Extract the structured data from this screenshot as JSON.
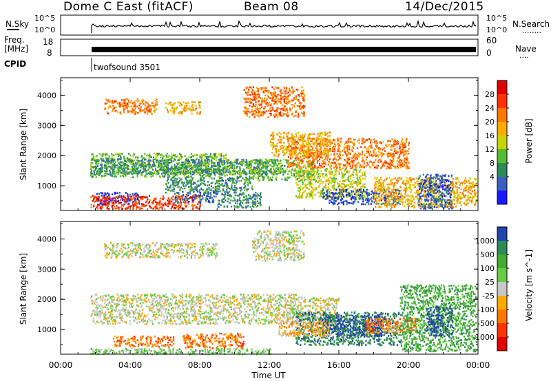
{
  "header": {
    "title": "Dome C East (fitACF)",
    "beam": "Beam 08",
    "date": "14/Dec/2015"
  },
  "noise_panel": {
    "left_label": "N.Sky",
    "right_label": "N.Search",
    "right_dots": "........",
    "tick_top": "10^5",
    "tick_bottom": "10^0"
  },
  "freq_panel": {
    "left_label_1": "Freq.",
    "left_label_2": "[MHz]",
    "tick_top": "18",
    "tick_bottom": "8",
    "right_label": "Nave",
    "right_dots": "....",
    "right_tick_top": "60",
    "right_tick_bottom": "0"
  },
  "cpid": {
    "label": "CPID",
    "program": "twofsound 3501"
  },
  "chart_data": [
    {
      "type": "heatmap",
      "name": "power",
      "ylabel": "Slant Range [km]",
      "ylim": [
        180,
        4580
      ],
      "xlim": [
        0,
        24
      ],
      "yticks": [
        1000,
        2000,
        3000,
        4000
      ],
      "colorbar_label": "Power [dB]",
      "colorbar_ticks": [
        "28",
        "24",
        "20",
        "16",
        "12",
        "8",
        "4"
      ],
      "colorbar_colors": [
        "#e00000",
        "#ff3300",
        "#ff7700",
        "#ffaa00",
        "#c8d400",
        "#55bb33",
        "#2e8b57",
        "#3b5fc0",
        "#1a1aff"
      ],
      "regions": [
        {
          "x0": 1.7,
          "x1": 9.5,
          "y0": 1300,
          "y1": 2100,
          "level": 5
        },
        {
          "x0": 1.7,
          "x1": 12.5,
          "y0": 1400,
          "y1": 1900,
          "level": 6
        },
        {
          "x0": 9.5,
          "x1": 14.5,
          "y0": 1200,
          "y1": 1900,
          "level": 5
        },
        {
          "x0": 6.0,
          "x1": 11.0,
          "y0": 800,
          "y1": 1300,
          "level": 6
        },
        {
          "x0": 2.0,
          "x1": 4.5,
          "y0": 400,
          "y1": 800,
          "level": 8
        },
        {
          "x0": 6.5,
          "x1": 9.0,
          "y0": 450,
          "y1": 800,
          "level": 7
        },
        {
          "x0": 9.0,
          "x1": 11.5,
          "y0": 300,
          "y1": 800,
          "level": 6
        },
        {
          "x0": 13.5,
          "x1": 17.5,
          "y0": 600,
          "y1": 1600,
          "level": 4
        },
        {
          "x0": 15.0,
          "x1": 19.5,
          "y0": 400,
          "y1": 900,
          "level": 7
        },
        {
          "x0": 18.0,
          "x1": 23.9,
          "y0": 300,
          "y1": 1300,
          "level": 3
        },
        {
          "x0": 20.5,
          "x1": 22.5,
          "y0": 250,
          "y1": 1400,
          "level": 7
        },
        {
          "x0": 13.0,
          "x1": 20.0,
          "y0": 1600,
          "y1": 2600,
          "level": 2
        },
        {
          "x0": 2.5,
          "x1": 5.5,
          "y0": 3400,
          "y1": 3900,
          "level": 2
        },
        {
          "x0": 6.0,
          "x1": 8.0,
          "y0": 3400,
          "y1": 3800,
          "level": 3
        },
        {
          "x0": 10.5,
          "x1": 14.0,
          "y0": 3300,
          "y1": 4300,
          "level": 2
        },
        {
          "x0": 12.0,
          "x1": 15.5,
          "y0": 2000,
          "y1": 2800,
          "level": 3
        },
        {
          "x0": 1.7,
          "x1": 8.0,
          "y0": 250,
          "y1": 700,
          "level": 1
        }
      ]
    },
    {
      "type": "heatmap",
      "name": "velocity",
      "xlabel": "Time UT",
      "ylabel": "Slant Range [km]",
      "ylim": [
        180,
        4580
      ],
      "xlim": [
        0,
        24
      ],
      "yticks": [
        1000,
        2000,
        3000,
        4000
      ],
      "xticks": [
        "00:00",
        "04:00",
        "08:00",
        "12:00",
        "16:00",
        "20:00",
        "00:00"
      ],
      "colorbar_label": "Velocity [m s^-1]",
      "colorbar_ticks": [
        "1000",
        "500",
        "100",
        "25",
        "-25",
        "-100",
        "-500",
        "-1000"
      ],
      "colorbar_colors": [
        "#2244aa",
        "#2e8b57",
        "#44aa33",
        "#66cc44",
        "#c8c8c8",
        "#ffaa00",
        "#ff7700",
        "#ff3300",
        "#e00000"
      ],
      "regions": [
        {
          "x0": 1.7,
          "x1": 13.5,
          "y0": 1200,
          "y1": 2200,
          "level": 4
        },
        {
          "x0": 13.0,
          "x1": 16.0,
          "y0": 1200,
          "y1": 2100,
          "level": 4
        },
        {
          "x0": 3.0,
          "x1": 6.5,
          "y0": 450,
          "y1": 800,
          "level": 6
        },
        {
          "x0": 7.0,
          "x1": 10.5,
          "y0": 400,
          "y1": 900,
          "level": 6
        },
        {
          "x0": 13.5,
          "x1": 19.5,
          "y0": 500,
          "y1": 1600,
          "level": 1
        },
        {
          "x0": 15.0,
          "x1": 18.5,
          "y0": 800,
          "y1": 1500,
          "level": 0
        },
        {
          "x0": 17.5,
          "x1": 20.5,
          "y0": 900,
          "y1": 1400,
          "level": 6
        },
        {
          "x0": 19.5,
          "x1": 23.9,
          "y0": 300,
          "y1": 2500,
          "level": 2
        },
        {
          "x0": 21.0,
          "x1": 22.5,
          "y0": 800,
          "y1": 1800,
          "level": 0
        },
        {
          "x0": 1.7,
          "x1": 12.0,
          "y0": 200,
          "y1": 400,
          "level": 3
        },
        {
          "x0": 11.0,
          "x1": 14.0,
          "y0": 3300,
          "y1": 4300,
          "level": 4
        },
        {
          "x0": 2.5,
          "x1": 9.0,
          "y0": 3400,
          "y1": 3900,
          "level": 4
        },
        {
          "x0": 12.5,
          "x1": 15.5,
          "y0": 800,
          "y1": 1300,
          "level": 5
        }
      ]
    }
  ],
  "colors": {
    "background": "#ffffff",
    "axes": "#000000"
  }
}
